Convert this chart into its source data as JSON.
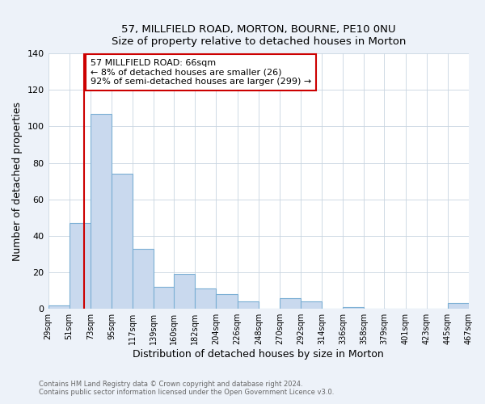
{
  "title": "57, MILLFIELD ROAD, MORTON, BOURNE, PE10 0NU",
  "subtitle": "Size of property relative to detached houses in Morton",
  "xlabel": "Distribution of detached houses by size in Morton",
  "ylabel": "Number of detached properties",
  "bins": [
    29,
    51,
    73,
    95,
    117,
    139,
    160,
    182,
    204,
    226,
    248,
    270,
    292,
    314,
    336,
    358,
    379,
    401,
    423,
    445,
    467
  ],
  "bin_labels": [
    "29sqm",
    "51sqm",
    "73sqm",
    "95sqm",
    "117sqm",
    "139sqm",
    "160sqm",
    "182sqm",
    "204sqm",
    "226sqm",
    "248sqm",
    "270sqm",
    "292sqm",
    "314sqm",
    "336sqm",
    "358sqm",
    "379sqm",
    "401sqm",
    "423sqm",
    "445sqm",
    "467sqm"
  ],
  "counts": [
    2,
    47,
    107,
    74,
    33,
    12,
    19,
    11,
    8,
    4,
    0,
    6,
    4,
    0,
    1,
    0,
    0,
    0,
    0,
    3
  ],
  "bar_color": "#c9d9ee",
  "bar_edge_color": "#7bafd4",
  "vline_x": 66,
  "vline_color": "#cc0000",
  "ylim": [
    0,
    140
  ],
  "yticks": [
    0,
    20,
    40,
    60,
    80,
    100,
    120,
    140
  ],
  "annotation_text": "57 MILLFIELD ROAD: 66sqm\n← 8% of detached houses are smaller (26)\n92% of semi-detached houses are larger (299) →",
  "annotation_box_color": "#ffffff",
  "annotation_box_edge_color": "#cc0000",
  "footer_line1": "Contains HM Land Registry data © Crown copyright and database right 2024.",
  "footer_line2": "Contains public sector information licensed under the Open Government Licence v3.0.",
  "background_color": "#edf2f9",
  "plot_background_color": "#ffffff",
  "grid_color": "#c8d4e0"
}
